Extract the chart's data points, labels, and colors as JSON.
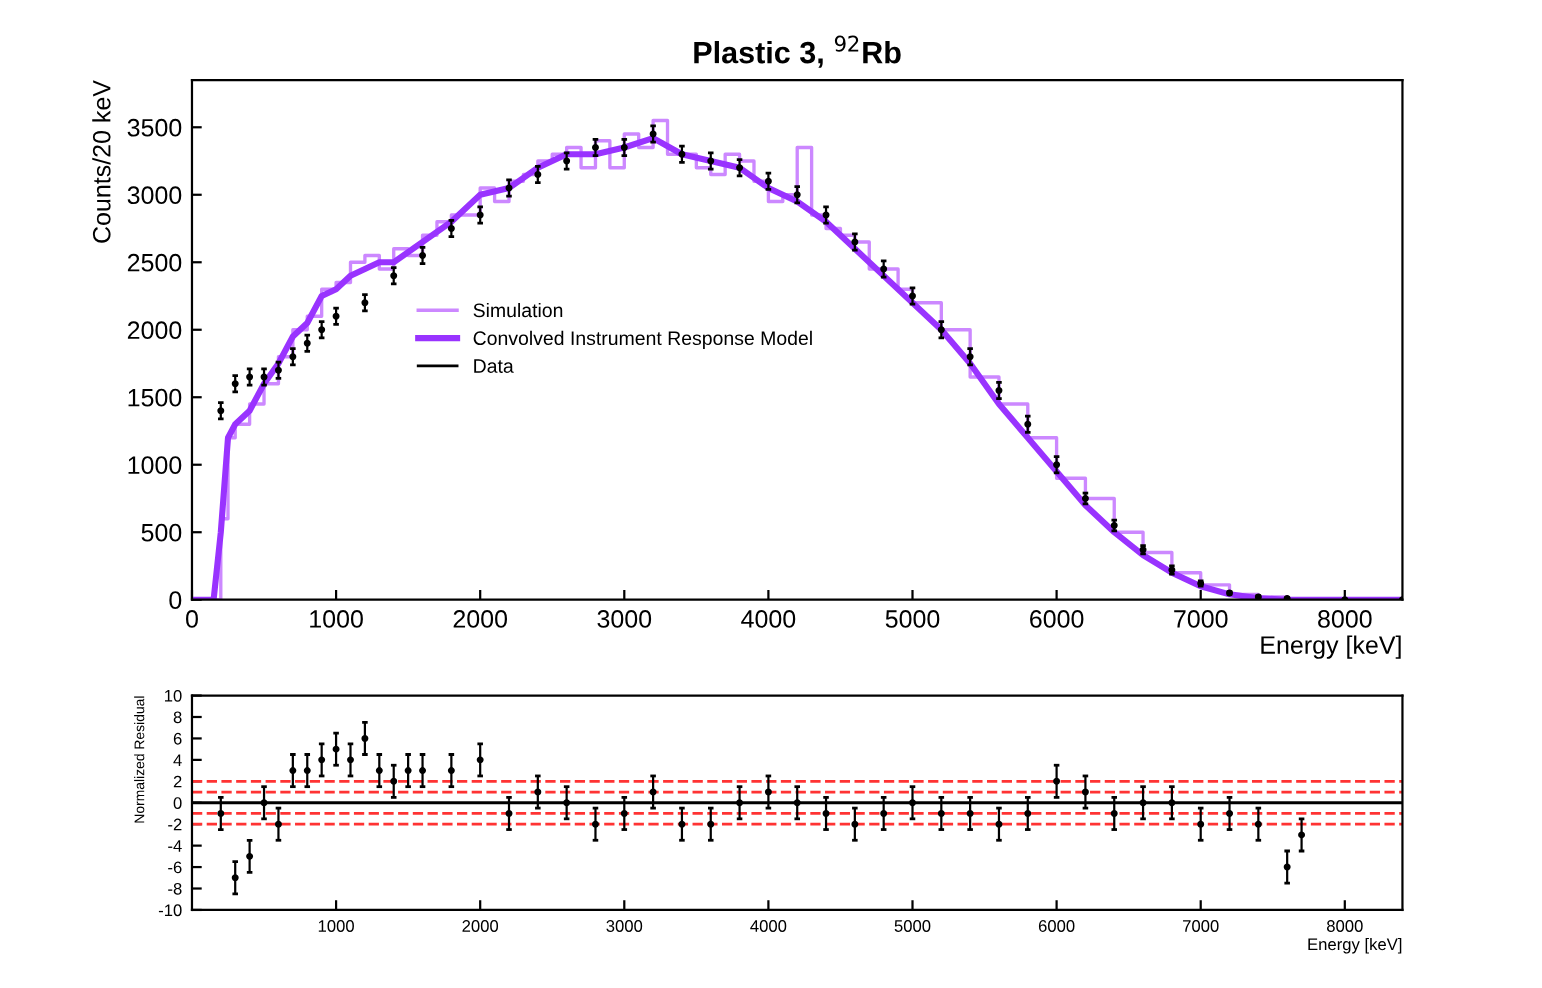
{
  "chart_data": [
    {
      "type": "line",
      "title": "Plastic 3, $^{92}$Rb",
      "ylabel": "Counts/20 keV",
      "xlabel": "Energy [keV]",
      "xlim": [
        0,
        8400
      ],
      "xticks": [
        0,
        1000,
        2000,
        3000,
        4000,
        5000,
        6000,
        7000,
        8000
      ],
      "ylim": [
        0,
        3850
      ],
      "yticks": [
        0,
        500,
        1000,
        1500,
        2000,
        2500,
        3000,
        3500
      ],
      "grid": false,
      "legend": "center",
      "series": [
        {
          "name": "Simulation",
          "type": "step",
          "color": "#cc88ff",
          "x": [
            0,
            150,
            200,
            250,
            300,
            400,
            500,
            600,
            700,
            800,
            900,
            1000,
            1100,
            1200,
            1300,
            1400,
            1500,
            1600,
            1700,
            1800,
            1900,
            2000,
            2100,
            2200,
            2300,
            2400,
            2500,
            2600,
            2700,
            2800,
            2900,
            3000,
            3100,
            3200,
            3300,
            3400,
            3500,
            3600,
            3700,
            3800,
            3900,
            4000,
            4100,
            4200,
            4300,
            4400,
            4500,
            4600,
            4700,
            4800,
            4900,
            5000,
            5200,
            5400,
            5600,
            5800,
            6000,
            6200,
            6400,
            6600,
            6800,
            7000,
            7200,
            7400,
            7600,
            8400
          ],
          "values": [
            0,
            0,
            600,
            1200,
            1300,
            1450,
            1600,
            1800,
            2000,
            2100,
            2300,
            2350,
            2500,
            2550,
            2450,
            2600,
            2550,
            2700,
            2800,
            2850,
            2850,
            3050,
            2950,
            3100,
            3150,
            3250,
            3300,
            3350,
            3200,
            3400,
            3200,
            3450,
            3350,
            3550,
            3300,
            3300,
            3200,
            3150,
            3300,
            3250,
            3100,
            2950,
            3000,
            3350,
            2850,
            2750,
            2700,
            2650,
            2450,
            2450,
            2300,
            2200,
            2000,
            1650,
            1450,
            1200,
            900,
            750,
            500,
            350,
            200,
            110,
            40,
            20,
            0,
            0
          ]
        },
        {
          "name": "Convolved Instrument Response Model",
          "type": "line",
          "color": "#9933ff",
          "x": [
            0,
            150,
            200,
            250,
            300,
            400,
            500,
            600,
            700,
            800,
            900,
            1000,
            1100,
            1200,
            1300,
            1400,
            1600,
            1800,
            2000,
            2200,
            2400,
            2600,
            2800,
            3000,
            3200,
            3400,
            3600,
            3800,
            4000,
            4200,
            4400,
            4600,
            4800,
            5000,
            5200,
            5400,
            5600,
            5800,
            6000,
            6200,
            6400,
            6600,
            6800,
            7000,
            7200,
            7400,
            7600,
            8400
          ],
          "values": [
            0,
            0,
            500,
            1200,
            1300,
            1400,
            1600,
            1750,
            1950,
            2050,
            2250,
            2300,
            2400,
            2450,
            2500,
            2500,
            2650,
            2800,
            3000,
            3050,
            3200,
            3300,
            3300,
            3350,
            3420,
            3300,
            3250,
            3200,
            3050,
            2950,
            2800,
            2600,
            2400,
            2200,
            2000,
            1750,
            1450,
            1200,
            950,
            700,
            500,
            330,
            200,
            100,
            40,
            10,
            0,
            0
          ]
        },
        {
          "name": "Data",
          "type": "scatter",
          "color": "#000000",
          "x": [
            200,
            300,
            400,
            500,
            600,
            700,
            800,
            900,
            1000,
            1200,
            1400,
            1600,
            1800,
            2000,
            2200,
            2400,
            2600,
            2800,
            3000,
            3200,
            3400,
            3600,
            3800,
            4000,
            4200,
            4400,
            4600,
            4800,
            5000,
            5200,
            5400,
            5600,
            5800,
            6000,
            6200,
            6400,
            6600,
            6800,
            7000,
            7200,
            7400,
            7600,
            8000,
            8400
          ],
          "values": [
            1400,
            1600,
            1650,
            1650,
            1700,
            1800,
            1900,
            2000,
            2100,
            2200,
            2400,
            2550,
            2750,
            2850,
            3050,
            3150,
            3250,
            3350,
            3350,
            3450,
            3300,
            3250,
            3200,
            3100,
            3000,
            2850,
            2650,
            2450,
            2250,
            2000,
            1800,
            1550,
            1300,
            1000,
            750,
            550,
            370,
            220,
            120,
            50,
            20,
            10,
            0,
            0
          ],
          "errors": [
            60,
            60,
            60,
            60,
            60,
            60,
            60,
            60,
            60,
            60,
            60,
            60,
            60,
            60,
            60,
            60,
            60,
            60,
            60,
            60,
            60,
            60,
            60,
            60,
            60,
            60,
            60,
            60,
            60,
            60,
            60,
            60,
            60,
            60,
            40,
            40,
            30,
            30,
            20,
            10,
            10,
            5,
            5,
            5
          ]
        }
      ]
    },
    {
      "type": "scatter",
      "ylabel": "Normalized Residual",
      "xlabel": "Energy [keV]",
      "xlim": [
        0,
        8400
      ],
      "xticks": [
        1000,
        2000,
        3000,
        4000,
        5000,
        6000,
        7000,
        8000
      ],
      "ylim": [
        -10,
        10
      ],
      "yticks": [
        -10,
        -8,
        -6,
        -4,
        -2,
        0,
        2,
        4,
        6,
        8,
        10
      ],
      "grid": false,
      "ref_lines": [
        {
          "axis": "y",
          "value": 0,
          "color": "#000000",
          "line_style": "solid"
        },
        {
          "axis": "y",
          "value": 1,
          "color": "#ff3333",
          "line_style": "dashed"
        },
        {
          "axis": "y",
          "value": 2,
          "color": "#ff3333",
          "line_style": "dashed"
        },
        {
          "axis": "y",
          "value": -1,
          "color": "#ff3333",
          "line_style": "dashed"
        },
        {
          "axis": "y",
          "value": -2,
          "color": "#ff3333",
          "line_style": "dashed"
        }
      ],
      "series": [
        {
          "color": "#000000",
          "x": [
            200,
            300,
            400,
            500,
            600,
            700,
            800,
            900,
            1000,
            1100,
            1200,
            1300,
            1400,
            1500,
            1600,
            1800,
            2000,
            2200,
            2400,
            2600,
            2800,
            3000,
            3200,
            3400,
            3600,
            3800,
            4000,
            4200,
            4400,
            4600,
            4800,
            5000,
            5200,
            5400,
            5600,
            5800,
            6000,
            6200,
            6400,
            6600,
            6800,
            7000,
            7200,
            7400,
            7600,
            7700
          ],
          "values": [
            -1,
            -7,
            -5,
            0,
            -2,
            3,
            3,
            4,
            5,
            4,
            6,
            3,
            2,
            3,
            3,
            3,
            4,
            -1,
            1,
            0,
            -2,
            -1,
            1,
            -2,
            -2,
            0,
            1,
            0,
            -1,
            -2,
            -1,
            0,
            -1,
            -1,
            -2,
            -1,
            2,
            1,
            -1,
            0,
            0,
            -2,
            -1,
            -2,
            -6,
            -3
          ],
          "errors": [
            1.5,
            1.5,
            1.5,
            1.5,
            1.5,
            1.5,
            1.5,
            1.5,
            1.5,
            1.5,
            1.5,
            1.5,
            1.5,
            1.5,
            1.5,
            1.5,
            1.5,
            1.5,
            1.5,
            1.5,
            1.5,
            1.5,
            1.5,
            1.5,
            1.5,
            1.5,
            1.5,
            1.5,
            1.5,
            1.5,
            1.5,
            1.5,
            1.5,
            1.5,
            1.5,
            1.5,
            1.5,
            1.5,
            1.5,
            1.5,
            1.5,
            1.5,
            1.5,
            1.5,
            1.5,
            1.5
          ]
        }
      ]
    }
  ]
}
